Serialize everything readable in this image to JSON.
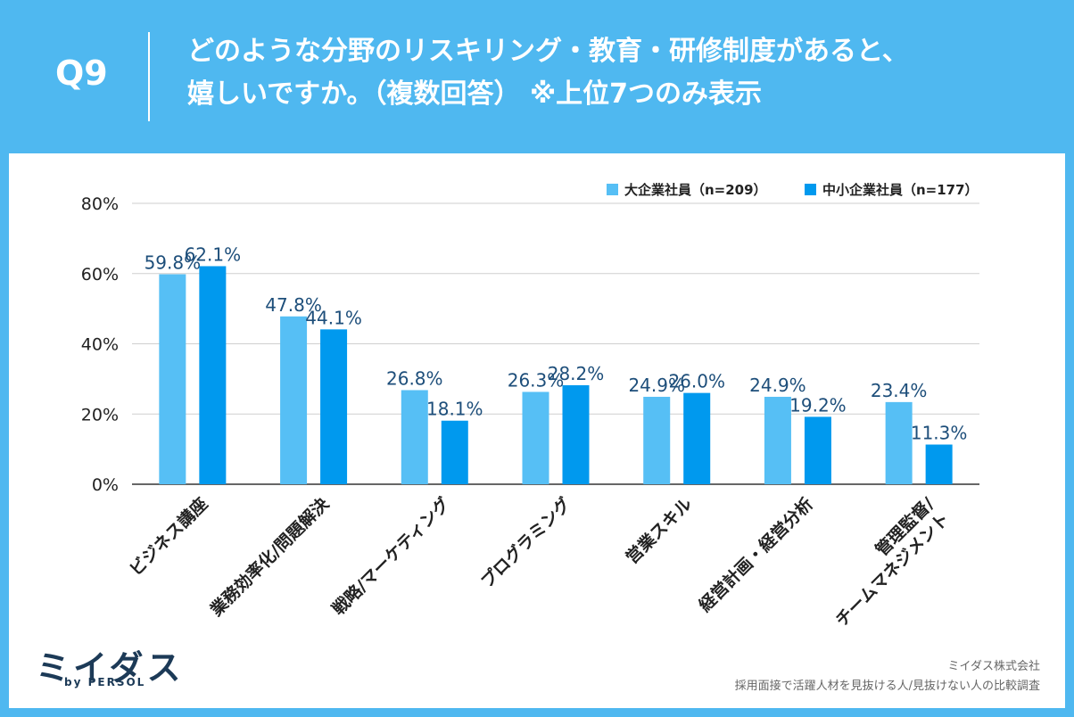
{
  "header": {
    "qnum": "Q9",
    "title_line1": "どのような分野のリスキリング・教育・研修制度があると、",
    "title_line2": "嬉しいですか。（複数回答） ※上位7つのみ表示"
  },
  "chart_data": {
    "type": "bar",
    "categories": [
      [
        "ビジネス講座"
      ],
      [
        "業務効率化/問題解決"
      ],
      [
        "戦略/マーケティング"
      ],
      [
        "プログラミング"
      ],
      [
        "営業スキル"
      ],
      [
        "経営計画・経営分析"
      ],
      [
        "管理監督/",
        "チームマネジメント"
      ]
    ],
    "series": [
      {
        "name": "大企業社員（n=209）",
        "values": [
          59.8,
          47.8,
          26.8,
          26.3,
          24.9,
          24.9,
          23.4
        ],
        "color": "#56bff5"
      },
      {
        "name": "中小企業社員（n=177）",
        "values": [
          62.1,
          44.1,
          18.1,
          28.2,
          26.0,
          19.2,
          11.3
        ],
        "color": "#0099ee"
      }
    ],
    "yticks": [
      "0%",
      "20%",
      "40%",
      "60%",
      "80%"
    ],
    "ylim": [
      0,
      80
    ],
    "grid": true,
    "legend": "top-right"
  },
  "footer": {
    "logo": "ミイダス",
    "logo_sub": "by PERSOL",
    "source_company": "ミイダス株式会社",
    "source_survey": "採用面接で活躍人材を見抜ける人/見抜けない人の比較調査"
  }
}
